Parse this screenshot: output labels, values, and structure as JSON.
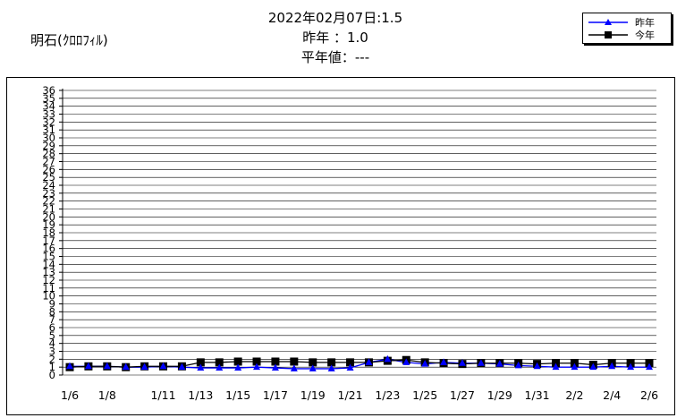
{
  "header": {
    "station": "明石(ｸﾛﾛﾌｨﾙ)",
    "date_line": "2022年02月07日:1.5",
    "last_year_line": "昨年 ：1.0",
    "normal_line": "平年値：---"
  },
  "colors": {
    "last_year": "#0000ff",
    "this_year": "#000000",
    "grid": "#000000"
  },
  "chart_data": {
    "type": "line",
    "title": "",
    "xlabel": "",
    "ylabel": "",
    "ylim": [
      0,
      36
    ],
    "y_ticks": [
      0,
      1,
      2,
      3,
      4,
      5,
      6,
      7,
      8,
      9,
      10,
      11,
      12,
      13,
      14,
      15,
      16,
      17,
      18,
      19,
      20,
      21,
      22,
      23,
      24,
      25,
      26,
      27,
      28,
      29,
      30,
      31,
      32,
      33,
      34,
      35,
      36
    ],
    "grid": true,
    "legend_position": "top-right",
    "categories": [
      "1/6",
      "1/7",
      "1/8",
      "1/9",
      "1/10",
      "1/11",
      "1/12",
      "1/13",
      "1/14",
      "1/15",
      "1/16",
      "1/17",
      "1/18",
      "1/19",
      "1/20",
      "1/21",
      "1/22",
      "1/23",
      "1/24",
      "1/25",
      "1/26",
      "1/27",
      "1/28",
      "1/29",
      "1/30",
      "1/31",
      "2/1",
      "2/2",
      "2/3",
      "2/4",
      "2/5",
      "2/6"
    ],
    "x_tick_labels": [
      "1/6",
      "1/8",
      "1/11",
      "1/13",
      "1/15",
      "1/17",
      "1/19",
      "1/21",
      "1/23",
      "1/25",
      "1/27",
      "1/29",
      "1/31",
      "2/2",
      "2/4",
      "2/6"
    ],
    "series": [
      {
        "name": "昨年",
        "marker": "triangle",
        "color": "#0000ff",
        "values": [
          1.1,
          1.1,
          1.1,
          1.0,
          1.0,
          1.1,
          1.0,
          0.9,
          0.9,
          0.9,
          1.0,
          0.9,
          0.8,
          0.8,
          0.8,
          0.9,
          1.6,
          2.0,
          1.6,
          1.4,
          1.6,
          1.5,
          1.5,
          1.4,
          1.2,
          1.1,
          1.0,
          1.0,
          1.0,
          1.1,
          1.0,
          1.0
        ]
      },
      {
        "name": "今年",
        "marker": "square",
        "color": "#000000",
        "values": [
          1.0,
          1.1,
          1.1,
          1.0,
          1.1,
          1.1,
          1.1,
          1.6,
          1.6,
          1.7,
          1.7,
          1.7,
          1.7,
          1.6,
          1.6,
          1.6,
          1.6,
          1.8,
          1.9,
          1.6,
          1.5,
          1.4,
          1.5,
          1.5,
          1.5,
          1.4,
          1.5,
          1.5,
          1.3,
          1.5,
          1.5,
          1.5
        ]
      }
    ]
  }
}
